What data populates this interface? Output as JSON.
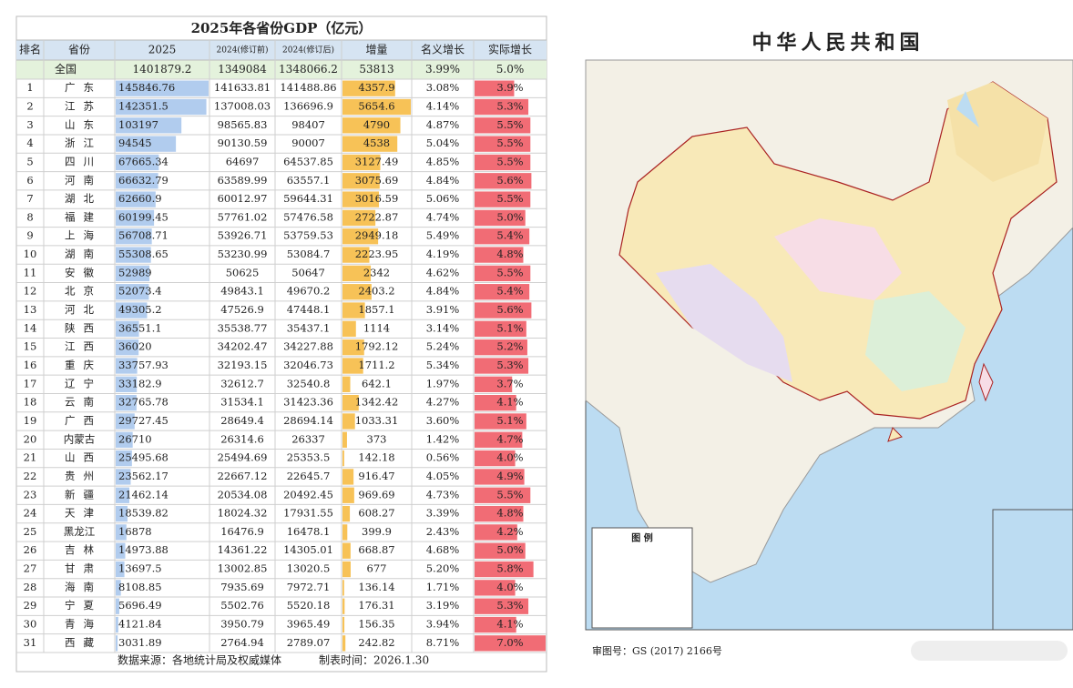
{
  "table": {
    "title": "2025年各省份GDP（亿元）",
    "headers": [
      "排名",
      "省份",
      "2025",
      "2024(修订前)",
      "2024(修订后)",
      "增量",
      "名义增长",
      "实际增长"
    ],
    "total": [
      "全国",
      "1401879.2",
      "1349084",
      "1348066.2",
      "53813",
      "3.99%",
      "5.0%"
    ],
    "rows": [
      [
        "1",
        "广东",
        "145846.76",
        "141633.81",
        "141488.86",
        "4357.9",
        "3.08%",
        "3.9%"
      ],
      [
        "2",
        "江苏",
        "142351.5",
        "137008.03",
        "136696.9",
        "5654.6",
        "4.14%",
        "5.3%"
      ],
      [
        "3",
        "山东",
        "103197",
        "98565.83",
        "98407",
        "4790",
        "4.87%",
        "5.5%"
      ],
      [
        "4",
        "浙江",
        "94545",
        "90130.59",
        "90007",
        "4538",
        "5.04%",
        "5.5%"
      ],
      [
        "5",
        "四川",
        "67665.34",
        "64697",
        "64537.85",
        "3127.49",
        "4.85%",
        "5.5%"
      ],
      [
        "6",
        "河南",
        "66632.79",
        "63589.99",
        "63557.1",
        "3075.69",
        "4.84%",
        "5.6%"
      ],
      [
        "7",
        "湖北",
        "62660.9",
        "60012.97",
        "59644.31",
        "3016.59",
        "5.06%",
        "5.5%"
      ],
      [
        "8",
        "福建",
        "60199.45",
        "57761.02",
        "57476.58",
        "2722.87",
        "4.74%",
        "5.0%"
      ],
      [
        "9",
        "上海",
        "56708.71",
        "53926.71",
        "53759.53",
        "2949.18",
        "5.49%",
        "5.4%"
      ],
      [
        "10",
        "湖南",
        "55308.65",
        "53230.99",
        "53084.7",
        "2223.95",
        "4.19%",
        "4.8%"
      ],
      [
        "11",
        "安徽",
        "52989",
        "50625",
        "50647",
        "2342",
        "4.62%",
        "5.5%"
      ],
      [
        "12",
        "北京",
        "52073.4",
        "49843.1",
        "49670.2",
        "2403.2",
        "4.84%",
        "5.4%"
      ],
      [
        "13",
        "河北",
        "49305.2",
        "47526.9",
        "47448.1",
        "1857.1",
        "3.91%",
        "5.6%"
      ],
      [
        "14",
        "陕西",
        "36551.1",
        "35538.77",
        "35437.1",
        "1114",
        "3.14%",
        "5.1%"
      ],
      [
        "15",
        "江西",
        "36020",
        "34202.47",
        "34227.88",
        "1792.12",
        "5.24%",
        "5.2%"
      ],
      [
        "16",
        "重庆",
        "33757.93",
        "32193.15",
        "32046.73",
        "1711.2",
        "5.34%",
        "5.3%"
      ],
      [
        "17",
        "辽宁",
        "33182.9",
        "32612.7",
        "32540.8",
        "642.1",
        "1.97%",
        "3.7%"
      ],
      [
        "18",
        "云南",
        "32765.78",
        "31534.1",
        "31423.36",
        "1342.42",
        "4.27%",
        "4.1%"
      ],
      [
        "19",
        "广西",
        "29727.45",
        "28649.4",
        "28694.14",
        "1033.31",
        "3.60%",
        "5.1%"
      ],
      [
        "20",
        "内蒙古",
        "26710",
        "26314.6",
        "26337",
        "373",
        "1.42%",
        "4.7%"
      ],
      [
        "21",
        "山西",
        "25495.68",
        "25494.69",
        "25353.5",
        "142.18",
        "0.56%",
        "4.0%"
      ],
      [
        "22",
        "贵州",
        "23562.17",
        "22667.12",
        "22645.7",
        "916.47",
        "4.05%",
        "4.9%"
      ],
      [
        "23",
        "新疆",
        "21462.14",
        "20534.08",
        "20492.45",
        "969.69",
        "4.73%",
        "5.5%"
      ],
      [
        "24",
        "天津",
        "18539.82",
        "18024.32",
        "17931.55",
        "608.27",
        "3.39%",
        "4.8%"
      ],
      [
        "25",
        "黑龙江",
        "16878",
        "16476.9",
        "16478.1",
        "399.9",
        "2.43%",
        "4.2%"
      ],
      [
        "26",
        "吉林",
        "14973.88",
        "14361.22",
        "14305.01",
        "668.87",
        "4.68%",
        "5.0%"
      ],
      [
        "27",
        "甘肃",
        "13697.5",
        "13002.85",
        "13020.5",
        "677",
        "5.20%",
        "5.8%"
      ],
      [
        "28",
        "海南",
        "8108.85",
        "7935.69",
        "7972.71",
        "136.14",
        "1.71%",
        "4.0%"
      ],
      [
        "29",
        "宁夏",
        "5696.49",
        "5502.76",
        "5520.18",
        "176.31",
        "3.19%",
        "5.3%"
      ],
      [
        "30",
        "青海",
        "4121.84",
        "3950.79",
        "3965.49",
        "156.35",
        "3.94%",
        "4.1%"
      ],
      [
        "31",
        "西藏",
        "3031.89",
        "2764.94",
        "2789.07",
        "242.82",
        "8.71%",
        "7.0%"
      ]
    ],
    "source": "数据来源：各地统计局及权威媒体",
    "date": "制表时间：2026.1.30"
  },
  "map": {
    "title": "中华人民共和国",
    "legend_title": "图 例",
    "caption": "审图号：GS (2017) 2166号"
  }
}
